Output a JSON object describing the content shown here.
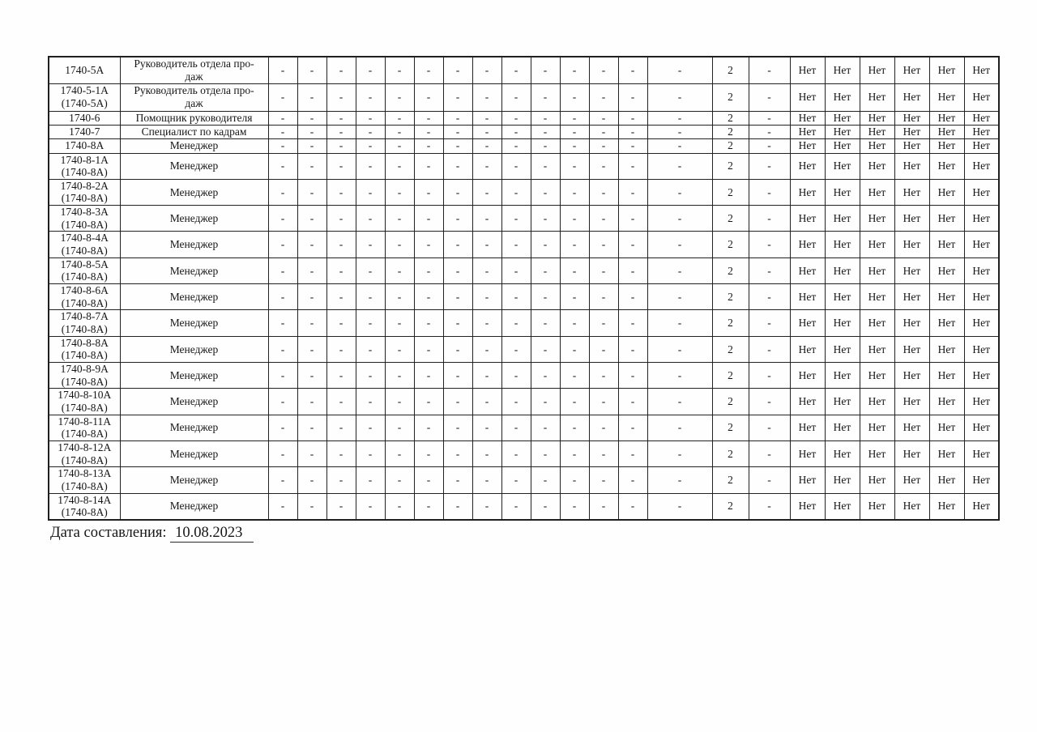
{
  "table": {
    "rows": [
      {
        "code": "1740-5А",
        "position": "Руководитель отдела про-\nдаж",
        "values": [
          "-",
          "-",
          "-",
          "-",
          "-",
          "-",
          "-",
          "-",
          "-",
          "-",
          "-",
          "-",
          "-",
          "-",
          "2",
          "-",
          "Нет",
          "Нет",
          "Нет",
          "Нет",
          "Нет",
          "Нет"
        ]
      },
      {
        "code": "1740-5-1А\n(1740-5А)",
        "position": "Руководитель отдела про-\nдаж",
        "values": [
          "-",
          "-",
          "-",
          "-",
          "-",
          "-",
          "-",
          "-",
          "-",
          "-",
          "-",
          "-",
          "-",
          "-",
          "2",
          "-",
          "Нет",
          "Нет",
          "Нет",
          "Нет",
          "Нет",
          "Нет"
        ]
      },
      {
        "code": "1740-6",
        "position": "Помощник руководителя",
        "values": [
          "-",
          "-",
          "-",
          "-",
          "-",
          "-",
          "-",
          "-",
          "-",
          "-",
          "-",
          "-",
          "-",
          "-",
          "2",
          "-",
          "Нет",
          "Нет",
          "Нет",
          "Нет",
          "Нет",
          "Нет"
        ]
      },
      {
        "code": "1740-7",
        "position": "Специалист по кадрам",
        "values": [
          "-",
          "-",
          "-",
          "-",
          "-",
          "-",
          "-",
          "-",
          "-",
          "-",
          "-",
          "-",
          "-",
          "-",
          "2",
          "-",
          "Нет",
          "Нет",
          "Нет",
          "Нет",
          "Нет",
          "Нет"
        ]
      },
      {
        "code": "1740-8А",
        "position": "Менеджер",
        "values": [
          "-",
          "-",
          "-",
          "-",
          "-",
          "-",
          "-",
          "-",
          "-",
          "-",
          "-",
          "-",
          "-",
          "-",
          "2",
          "-",
          "Нет",
          "Нет",
          "Нет",
          "Нет",
          "Нет",
          "Нет"
        ]
      },
      {
        "code": "1740-8-1А\n(1740-8А)",
        "position": "Менеджер",
        "values": [
          "-",
          "-",
          "-",
          "-",
          "-",
          "-",
          "-",
          "-",
          "-",
          "-",
          "-",
          "-",
          "-",
          "-",
          "2",
          "-",
          "Нет",
          "Нет",
          "Нет",
          "Нет",
          "Нет",
          "Нет"
        ]
      },
      {
        "code": "1740-8-2А\n(1740-8А)",
        "position": "Менеджер",
        "values": [
          "-",
          "-",
          "-",
          "-",
          "-",
          "-",
          "-",
          "-",
          "-",
          "-",
          "-",
          "-",
          "-",
          "-",
          "2",
          "-",
          "Нет",
          "Нет",
          "Нет",
          "Нет",
          "Нет",
          "Нет"
        ]
      },
      {
        "code": "1740-8-3А\n(1740-8А)",
        "position": "Менеджер",
        "values": [
          "-",
          "-",
          "-",
          "-",
          "-",
          "-",
          "-",
          "-",
          "-",
          "-",
          "-",
          "-",
          "-",
          "-",
          "2",
          "-",
          "Нет",
          "Нет",
          "Нет",
          "Нет",
          "Нет",
          "Нет"
        ]
      },
      {
        "code": "1740-8-4А\n(1740-8А)",
        "position": "Менеджер",
        "values": [
          "-",
          "-",
          "-",
          "-",
          "-",
          "-",
          "-",
          "-",
          "-",
          "-",
          "-",
          "-",
          "-",
          "-",
          "2",
          "-",
          "Нет",
          "Нет",
          "Нет",
          "Нет",
          "Нет",
          "Нет"
        ]
      },
      {
        "code": "1740-8-5А\n(1740-8А)",
        "position": "Менеджер",
        "values": [
          "-",
          "-",
          "-",
          "-",
          "-",
          "-",
          "-",
          "-",
          "-",
          "-",
          "-",
          "-",
          "-",
          "-",
          "2",
          "-",
          "Нет",
          "Нет",
          "Нет",
          "Нет",
          "Нет",
          "Нет"
        ]
      },
      {
        "code": "1740-8-6А\n(1740-8А)",
        "position": "Менеджер",
        "values": [
          "-",
          "-",
          "-",
          "-",
          "-",
          "-",
          "-",
          "-",
          "-",
          "-",
          "-",
          "-",
          "-",
          "-",
          "2",
          "-",
          "Нет",
          "Нет",
          "Нет",
          "Нет",
          "Нет",
          "Нет"
        ]
      },
      {
        "code": "1740-8-7А\n(1740-8А)",
        "position": "Менеджер",
        "values": [
          "-",
          "-",
          "-",
          "-",
          "-",
          "-",
          "-",
          "-",
          "-",
          "-",
          "-",
          "-",
          "-",
          "-",
          "2",
          "-",
          "Нет",
          "Нет",
          "Нет",
          "Нет",
          "Нет",
          "Нет"
        ]
      },
      {
        "code": "1740-8-8А\n(1740-8А)",
        "position": "Менеджер",
        "values": [
          "-",
          "-",
          "-",
          "-",
          "-",
          "-",
          "-",
          "-",
          "-",
          "-",
          "-",
          "-",
          "-",
          "-",
          "2",
          "-",
          "Нет",
          "Нет",
          "Нет",
          "Нет",
          "Нет",
          "Нет"
        ]
      },
      {
        "code": "1740-8-9А\n(1740-8А)",
        "position": "Менеджер",
        "values": [
          "-",
          "-",
          "-",
          "-",
          "-",
          "-",
          "-",
          "-",
          "-",
          "-",
          "-",
          "-",
          "-",
          "-",
          "2",
          "-",
          "Нет",
          "Нет",
          "Нет",
          "Нет",
          "Нет",
          "Нет"
        ]
      },
      {
        "code": "1740-8-10А\n(1740-8А)",
        "position": "Менеджер",
        "values": [
          "-",
          "-",
          "-",
          "-",
          "-",
          "-",
          "-",
          "-",
          "-",
          "-",
          "-",
          "-",
          "-",
          "-",
          "2",
          "-",
          "Нет",
          "Нет",
          "Нет",
          "Нет",
          "Нет",
          "Нет"
        ]
      },
      {
        "code": "1740-8-11А\n(1740-8А)",
        "position": "Менеджер",
        "values": [
          "-",
          "-",
          "-",
          "-",
          "-",
          "-",
          "-",
          "-",
          "-",
          "-",
          "-",
          "-",
          "-",
          "-",
          "2",
          "-",
          "Нет",
          "Нет",
          "Нет",
          "Нет",
          "Нет",
          "Нет"
        ]
      },
      {
        "code": "1740-8-12А\n(1740-8А)",
        "position": "Менеджер",
        "values": [
          "-",
          "-",
          "-",
          "-",
          "-",
          "-",
          "-",
          "-",
          "-",
          "-",
          "-",
          "-",
          "-",
          "-",
          "2",
          "-",
          "Нет",
          "Нет",
          "Нет",
          "Нет",
          "Нет",
          "Нет"
        ]
      },
      {
        "code": "1740-8-13А\n(1740-8А)",
        "position": "Менеджер",
        "values": [
          "-",
          "-",
          "-",
          "-",
          "-",
          "-",
          "-",
          "-",
          "-",
          "-",
          "-",
          "-",
          "-",
          "-",
          "2",
          "-",
          "Нет",
          "Нет",
          "Нет",
          "Нет",
          "Нет",
          "Нет"
        ]
      },
      {
        "code": "1740-8-14А\n(1740-8А)",
        "position": "Менеджер",
        "values": [
          "-",
          "-",
          "-",
          "-",
          "-",
          "-",
          "-",
          "-",
          "-",
          "-",
          "-",
          "-",
          "-",
          "-",
          "2",
          "-",
          "Нет",
          "Нет",
          "Нет",
          "Нет",
          "Нет",
          "Нет"
        ]
      }
    ]
  },
  "footer": {
    "date_label": "Дата составления:",
    "date_value": "10.08.2023"
  }
}
